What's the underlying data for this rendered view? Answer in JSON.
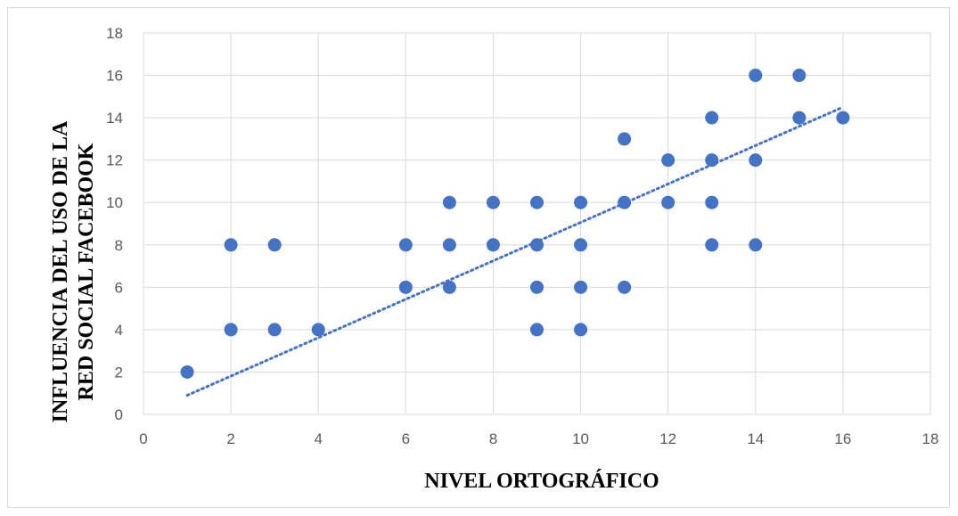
{
  "chart_data": {
    "type": "scatter",
    "title": "",
    "xlabel": "NIVEL ORTOGRÁFICO",
    "ylabel_lines": [
      "INFLUENCIA DEL USO DE LA",
      "RED SOCIAL FACEBOOK"
    ],
    "xlim": [
      0,
      18
    ],
    "ylim": [
      0,
      18
    ],
    "x_ticks": [
      "0",
      "2",
      "4",
      "6",
      "8",
      "10",
      "12",
      "14",
      "16",
      "18"
    ],
    "y_ticks": [
      "0",
      "2",
      "4",
      "6",
      "8",
      "10",
      "12",
      "14",
      "16",
      "18"
    ],
    "grid": true,
    "legend": "none",
    "marker_color": "#4472c4",
    "trendline": {
      "type": "linear",
      "style": "dotted",
      "color": "#4472c4",
      "x_range": [
        1,
        16
      ],
      "y_at_start": 0.9,
      "y_at_end": 14.5
    },
    "points": [
      [
        1,
        2
      ],
      [
        2,
        8
      ],
      [
        2,
        4
      ],
      [
        3,
        8
      ],
      [
        3,
        4
      ],
      [
        4,
        4
      ],
      [
        6,
        8
      ],
      [
        6,
        6
      ],
      [
        7,
        10
      ],
      [
        7,
        8
      ],
      [
        7,
        6
      ],
      [
        8,
        10
      ],
      [
        8,
        8
      ],
      [
        9,
        10
      ],
      [
        9,
        8
      ],
      [
        9,
        6
      ],
      [
        9,
        4
      ],
      [
        10,
        10
      ],
      [
        10,
        8
      ],
      [
        10,
        6
      ],
      [
        10,
        4
      ],
      [
        11,
        13
      ],
      [
        11,
        10
      ],
      [
        11,
        6
      ],
      [
        12,
        12
      ],
      [
        12,
        10
      ],
      [
        13,
        14
      ],
      [
        13,
        12
      ],
      [
        13,
        10
      ],
      [
        13,
        8
      ],
      [
        14,
        16
      ],
      [
        14,
        12
      ],
      [
        14,
        8
      ],
      [
        15,
        16
      ],
      [
        15,
        14
      ],
      [
        16,
        14
      ]
    ]
  }
}
